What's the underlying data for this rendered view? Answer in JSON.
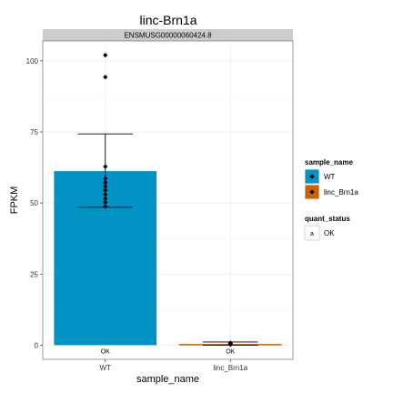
{
  "chart_data": {
    "type": "bar",
    "title": "linc-Brn1a",
    "facet_label": "ENSMUSG00000060424.8",
    "xlabel": "sample_name",
    "ylabel": "FPKM",
    "categories": [
      "WT",
      "linc_Brn1a"
    ],
    "values": [
      61.2,
      0.4
    ],
    "error_low": [
      48.5,
      0.0
    ],
    "error_high": [
      74.3,
      1.1
    ],
    "quant_status_labels": [
      "OK",
      "OK"
    ],
    "points": [
      [
        102,
        94.3,
        62.8,
        58.6,
        57.2,
        55.8,
        54.5,
        53.0,
        51.5,
        50.2,
        48.8
      ],
      [
        0.2,
        0.4,
        0.6,
        0.8
      ]
    ],
    "colors": [
      "#0093c4",
      "#c86400"
    ],
    "ylim": [
      -5,
      107
    ],
    "yticks": [
      0,
      25,
      50,
      75,
      100
    ],
    "grid": true,
    "legend_position": "right",
    "legend": {
      "fill_title": "sample_name",
      "fill_items": [
        "WT",
        "linc_Brn1a"
      ],
      "text_title": "quant_status",
      "text_key_glyph": "a",
      "text_items": [
        "OK"
      ]
    }
  }
}
